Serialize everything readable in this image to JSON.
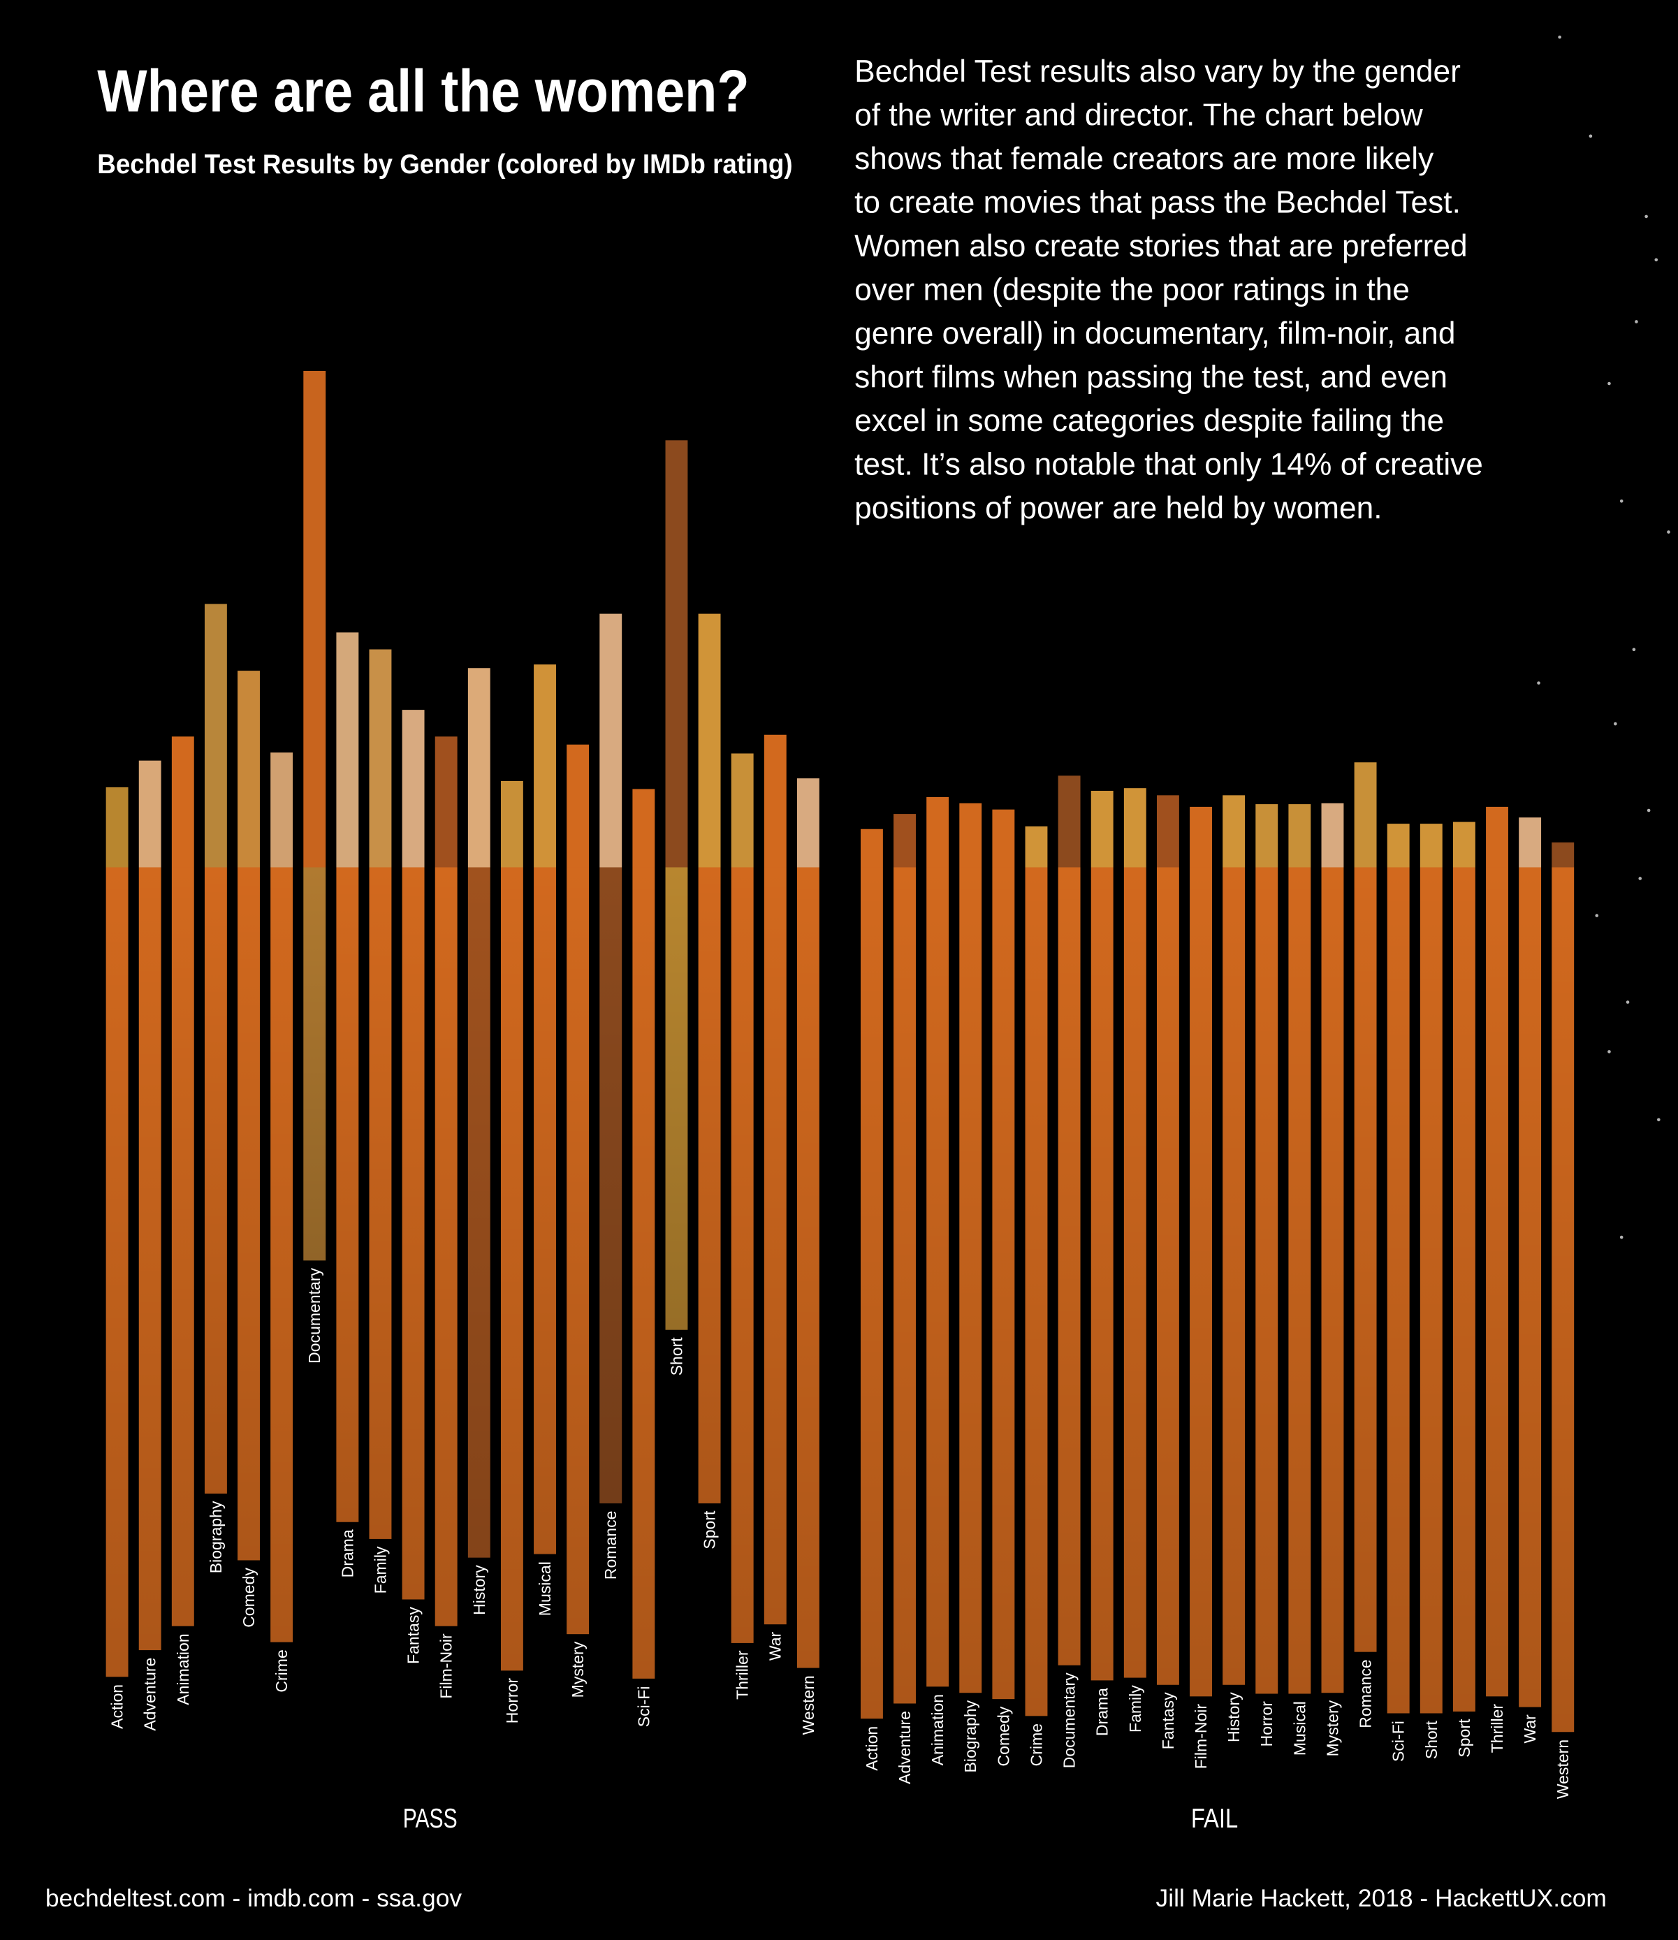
{
  "title": "Where are all the women?",
  "subtitle": "Bechdel Test Results by Gender (colored by IMDb rating)",
  "description_lines": [
    "Bechdel Test results also vary by the gender",
    "of the writer and director. The chart below",
    "shows that female creators are more likely",
    "to create movies that pass the Bechdel Test.",
    "Women also create stories that are preferred",
    "over men (despite the poor ratings in the",
    "genre overall) in documentary, film-noir, and",
    "short films when passing the test, and even",
    "excel in some categories despite failing the",
    "test. It’s also notable that only 14% of creative",
    "positions of power are held by women."
  ],
  "footer_left": "bechdeltest.com - imdb.com - ssa.gov",
  "footer_right": "Jill Marie Hackett, 2018 - HackettUX.com",
  "background_color": "#000000",
  "chart_data": [
    {
      "type": "bar",
      "stacked_percent": true,
      "group_label": "PASS",
      "categories": [
        "Action",
        "Adventure",
        "Animation",
        "Biography",
        "Comedy",
        "Crime",
        "Documentary",
        "Drama",
        "Family",
        "Fantasy",
        "Film-Noir",
        "History",
        "Horror",
        "Musical",
        "Mystery",
        "Romance",
        "Sci-Fi",
        "Short",
        "Sport",
        "Thriller",
        "War",
        "Western"
      ],
      "series": [
        {
          "segment": "upper",
          "values": [
            9.0,
            12.0,
            14.7,
            29.6,
            22.1,
            12.9,
            55.8,
            26.4,
            24.5,
            17.7,
            14.7,
            22.4,
            9.7,
            22.8,
            13.8,
            28.5,
            8.8,
            48.0,
            28.5,
            12.8,
            14.9,
            10.0
          ],
          "colors": [
            "#b8862f",
            "#d9a878",
            "#d2691e",
            "#b8863a",
            "#c8883a",
            "#d0a070",
            "#c8641e",
            "#d4a87a",
            "#c89048",
            "#d8aa80",
            "#a0501e",
            "#dcaa78",
            "#c89038",
            "#d09238",
            "#d2691e",
            "#d8aa80",
            "#d2691e",
            "#8c4a1e",
            "#d09438",
            "#c89038",
            "#d2691e",
            "#d8aa80"
          ]
        },
        {
          "segment": "lower",
          "values": [
            91.0,
            88.0,
            85.3,
            70.4,
            77.9,
            87.1,
            44.2,
            73.6,
            75.5,
            82.3,
            85.3,
            77.6,
            90.3,
            77.2,
            86.2,
            71.5,
            91.2,
            52.0,
            71.5,
            87.2,
            85.1,
            90.0
          ],
          "colors": [
            "#d2691e",
            "#d2691e",
            "#d2691e",
            "#d2691e",
            "#d2691e",
            "#d2691e",
            "#b07a30",
            "#d2691e",
            "#d2691e",
            "#d2691e",
            "#d2691e",
            "#a0521e",
            "#d2691e",
            "#d2691e",
            "#d2691e",
            "#8c4a1e",
            "#d2691e",
            "#b8862f",
            "#d2691e",
            "#d2691e",
            "#d2691e",
            "#d2691e"
          ]
        }
      ]
    },
    {
      "type": "bar",
      "stacked_percent": true,
      "group_label": "FAIL",
      "categories": [
        "Action",
        "Adventure",
        "Animation",
        "Biography",
        "Comedy",
        "Crime",
        "Documentary",
        "Drama",
        "Family",
        "Fantasy",
        "Film-Noir",
        "History",
        "Horror",
        "Musical",
        "Mystery",
        "Romance",
        "Sci-Fi",
        "Short",
        "Sport",
        "Thriller",
        "War",
        "Western"
      ],
      "series": [
        {
          "segment": "upper",
          "values": [
            4.3,
            6.0,
            7.9,
            7.2,
            6.5,
            4.6,
            10.3,
            8.6,
            8.9,
            8.1,
            6.8,
            8.1,
            7.1,
            7.1,
            7.2,
            11.8,
            4.9,
            4.9,
            5.1,
            6.8,
            5.6,
            2.8
          ],
          "colors": [
            "#d2691e",
            "#a0501e",
            "#d2691e",
            "#d2691e",
            "#d2691e",
            "#d09438",
            "#8c4a1e",
            "#d09438",
            "#d09438",
            "#a0501e",
            "#d2691e",
            "#d09438",
            "#c89038",
            "#c89038",
            "#d8aa80",
            "#c89038",
            "#d09438",
            "#d09438",
            "#d09438",
            "#d2691e",
            "#d8aa80",
            "#8c4a1e"
          ]
        },
        {
          "segment": "lower",
          "values": [
            95.7,
            94.0,
            92.1,
            92.8,
            93.5,
            95.4,
            89.7,
            91.4,
            91.1,
            91.9,
            93.2,
            91.9,
            92.9,
            92.9,
            92.8,
            88.2,
            95.1,
            95.1,
            94.9,
            93.2,
            94.4,
            97.2
          ],
          "colors": [
            "#d2691e",
            "#d2691e",
            "#d2691e",
            "#d2691e",
            "#d2691e",
            "#d2691e",
            "#d2691e",
            "#d2691e",
            "#d2691e",
            "#d2691e",
            "#d2691e",
            "#d2691e",
            "#d2691e",
            "#d2691e",
            "#d2691e",
            "#d2691e",
            "#d2691e",
            "#d2691e",
            "#d2691e",
            "#d2691e",
            "#d2691e",
            "#d2691e"
          ]
        }
      ]
    }
  ]
}
